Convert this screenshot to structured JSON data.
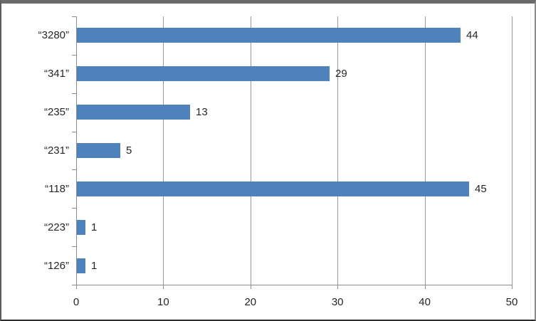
{
  "chart_data": {
    "type": "bar",
    "orientation": "horizontal",
    "title": "",
    "xlabel": "",
    "ylabel": "",
    "categories": [
      "“3280”",
      "“341”",
      "“235”",
      "“231”",
      "“118”",
      "“223”",
      "“126”"
    ],
    "values": [
      44,
      29,
      13,
      5,
      45,
      1,
      1
    ],
    "data_labels": [
      "44",
      "29",
      "13",
      "5",
      "45",
      "1",
      "1"
    ],
    "xlim": [
      0,
      50
    ],
    "x_ticks": [
      0,
      10,
      20,
      30,
      40,
      50
    ],
    "x_tick_labels": [
      "0",
      "10",
      "20",
      "30",
      "40",
      "50"
    ],
    "grid": true,
    "legend": "none",
    "colors": {
      "bar_fill": "#4F81BD",
      "gridline": "#969696",
      "axis_line": "#8C8C8C",
      "text": "#262626"
    }
  }
}
